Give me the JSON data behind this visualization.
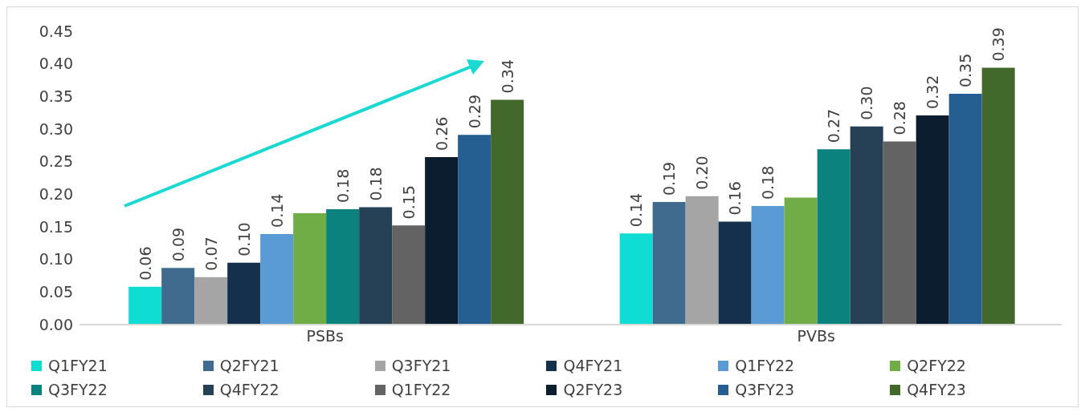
{
  "chart_data": {
    "type": "bar",
    "categories": [
      "PSBs",
      "PVBs"
    ],
    "series": [
      {
        "name": "Q1FY21",
        "color": "#0fddd4",
        "values": [
          0.058,
          0.14
        ],
        "value_labels": [
          "0.06",
          "0.14"
        ]
      },
      {
        "name": "Q2FY21",
        "color": "#406a8e",
        "values": [
          0.087,
          0.188
        ],
        "value_labels": [
          "0.09",
          "0.19"
        ]
      },
      {
        "name": "Q3FY21",
        "color": "#a5a5a5",
        "values": [
          0.073,
          0.197
        ],
        "value_labels": [
          "0.07",
          "0.20"
        ]
      },
      {
        "name": "Q4FY21",
        "color": "#15304d",
        "values": [
          0.095,
          0.158
        ],
        "value_labels": [
          "0.10",
          "0.16"
        ]
      },
      {
        "name": "Q1FY22",
        "color": "#5b9bd5",
        "values": [
          0.139,
          0.182
        ],
        "value_labels": [
          "0.14",
          "0.18"
        ]
      },
      {
        "name": "Q2FY22",
        "color": "#70ad47",
        "values": [
          0.171,
          0.195
        ],
        "value_labels": [
          null,
          null
        ]
      },
      {
        "name": "Q3FY22",
        "color": "#0b827d",
        "values": [
          0.177,
          0.269
        ],
        "value_labels": [
          "0.18",
          "0.27"
        ]
      },
      {
        "name": "Q4FY22",
        "color": "#264056",
        "values": [
          0.18,
          0.304
        ],
        "value_labels": [
          "0.18",
          "0.30"
        ]
      },
      {
        "name": "Q1FY22",
        "color": "#636363",
        "values": [
          0.152,
          0.281
        ],
        "value_labels": [
          "0.15",
          "0.28"
        ]
      },
      {
        "name": "Q2FY23",
        "color": "#0d1d30",
        "values": [
          0.257,
          0.321
        ],
        "value_labels": [
          "0.26",
          "0.32"
        ]
      },
      {
        "name": "Q3FY23",
        "color": "#255e91",
        "values": [
          0.291,
          0.354
        ],
        "value_labels": [
          "0.29",
          "0.35"
        ]
      },
      {
        "name": "Q4FY23",
        "color": "#43682b",
        "values": [
          0.345,
          0.394
        ],
        "value_labels": [
          "0.34",
          "0.39"
        ]
      }
    ],
    "ylim": [
      0,
      0.45
    ],
    "yticks": [
      {
        "value": 0,
        "label": "0.00"
      },
      {
        "value": 0.05,
        "label": "0.05"
      },
      {
        "value": 0.1,
        "label": "0.10"
      },
      {
        "value": 0.15,
        "label": "0.15"
      },
      {
        "value": 0.2,
        "label": "0.20"
      },
      {
        "value": 0.25,
        "label": "0.25"
      },
      {
        "value": 0.3,
        "label": "0.30"
      },
      {
        "value": 0.35,
        "label": "0.35"
      },
      {
        "value": 0.4,
        "label": "0.40"
      },
      {
        "value": 0.45,
        "label": "0.45"
      }
    ],
    "grid": false,
    "legend": "bottom"
  }
}
